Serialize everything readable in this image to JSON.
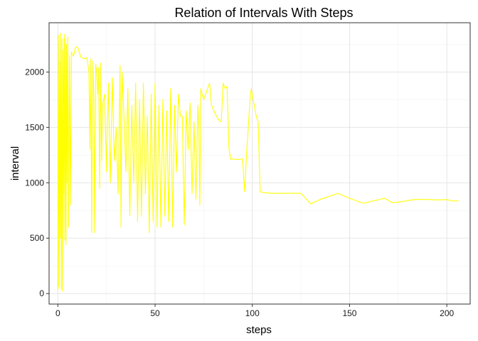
{
  "chart_data": {
    "type": "line",
    "title": "Relation of Intervals With Steps",
    "xlabel": "steps",
    "ylabel": "interval",
    "xlim": [
      -4.5,
      212
    ],
    "ylim": [
      -95,
      2445
    ],
    "xticks": [
      0,
      50,
      100,
      150,
      200
    ],
    "yticks": [
      0,
      500,
      1000,
      1500,
      2000
    ],
    "grid": true,
    "series_color": "#FFFF00",
    "series": [
      {
        "values": [
          [
            0,
            30
          ],
          [
            0.3,
            2330
          ],
          [
            0.6,
            60
          ],
          [
            0.9,
            2100
          ],
          [
            1.2,
            500
          ],
          [
            1.5,
            2350
          ],
          [
            1.8,
            40
          ],
          [
            2.1,
            2300
          ],
          [
            2.4,
            20
          ],
          [
            2.7,
            2200
          ],
          [
            3.0,
            900
          ],
          [
            3.3,
            2340
          ],
          [
            3.6,
            480
          ],
          [
            3.9,
            2300
          ],
          [
            4.2,
            440
          ],
          [
            4.5,
            2250
          ],
          [
            4.8,
            1000
          ],
          [
            5.1,
            2320
          ],
          [
            5.5,
            600
          ],
          [
            6.0,
            2150
          ],
          [
            6.5,
            800
          ],
          [
            7,
            2180
          ],
          [
            8,
            2140
          ],
          [
            9,
            2220
          ],
          [
            10,
            2230
          ],
          [
            11,
            2180
          ],
          [
            12,
            2130
          ],
          [
            14,
            2120
          ],
          [
            15,
            2130
          ],
          [
            16,
            2000
          ],
          [
            16.5,
            1300
          ],
          [
            17,
            2120
          ],
          [
            17.4,
            550
          ],
          [
            18,
            2100
          ],
          [
            18.5,
            1800
          ],
          [
            19,
            550
          ],
          [
            19.5,
            2070
          ],
          [
            20,
            2000
          ],
          [
            20.5,
            1800
          ],
          [
            21,
            2040
          ],
          [
            21.5,
            950
          ],
          [
            22,
            2080
          ],
          [
            22.5,
            1200
          ],
          [
            23,
            1700
          ],
          [
            24,
            1800
          ],
          [
            25,
            1100
          ],
          [
            26,
            1900
          ],
          [
            27,
            1000
          ],
          [
            28,
            1950
          ],
          [
            29,
            1200
          ],
          [
            30,
            1500
          ],
          [
            31,
            900
          ],
          [
            32,
            2060
          ],
          [
            32.5,
            600
          ],
          [
            33,
            2000
          ],
          [
            34,
            1600
          ],
          [
            35,
            1100
          ],
          [
            36,
            1850
          ],
          [
            37,
            700
          ],
          [
            38,
            1700
          ],
          [
            39,
            1000
          ],
          [
            40,
            1900
          ],
          [
            41,
            650
          ],
          [
            42,
            1750
          ],
          [
            43,
            700
          ],
          [
            44,
            1900
          ],
          [
            45,
            900
          ],
          [
            46,
            1600
          ],
          [
            47,
            550
          ],
          [
            48,
            1800
          ],
          [
            49,
            650
          ],
          [
            50,
            1900
          ],
          [
            51,
            600
          ],
          [
            52,
            1700
          ],
          [
            53,
            600
          ],
          [
            54,
            1750
          ],
          [
            55,
            700
          ],
          [
            56,
            1650
          ],
          [
            57,
            650
          ],
          [
            58,
            1850
          ],
          [
            59,
            600
          ],
          [
            60,
            1700
          ],
          [
            61,
            1100
          ],
          [
            62,
            1800
          ],
          [
            63,
            1600
          ],
          [
            64,
            1600
          ],
          [
            65,
            620
          ],
          [
            66,
            1650
          ],
          [
            67,
            1300
          ],
          [
            68,
            1720
          ],
          [
            69,
            900
          ],
          [
            70,
            1550
          ],
          [
            71,
            850
          ],
          [
            72,
            1700
          ],
          [
            72.5,
            1500
          ],
          [
            73,
            800
          ],
          [
            73.5,
            1850
          ],
          [
            75,
            1750
          ],
          [
            76,
            1800
          ],
          [
            77,
            1850
          ],
          [
            78,
            1900
          ],
          [
            79,
            1700
          ],
          [
            81,
            1620
          ],
          [
            83,
            1560
          ],
          [
            84,
            1550
          ],
          [
            85,
            1900
          ],
          [
            86,
            1850
          ],
          [
            87,
            1870
          ],
          [
            88,
            1300
          ],
          [
            89,
            1210
          ],
          [
            90,
            1215
          ],
          [
            92,
            1210
          ],
          [
            95,
            1215
          ],
          [
            96,
            920
          ],
          [
            97,
            1250
          ],
          [
            99,
            1800
          ],
          [
            99.5,
            1850
          ],
          [
            100,
            1780
          ],
          [
            101,
            1700
          ],
          [
            102,
            1600
          ],
          [
            103,
            1550
          ],
          [
            104,
            920
          ],
          [
            106,
            910
          ],
          [
            110,
            905
          ],
          [
            115,
            905
          ],
          [
            120,
            905
          ],
          [
            125,
            905
          ],
          [
            130,
            810
          ],
          [
            135,
            850
          ],
          [
            144,
            905
          ],
          [
            150,
            860
          ],
          [
            157,
            815
          ],
          [
            163,
            840
          ],
          [
            168,
            860
          ],
          [
            172,
            820
          ],
          [
            177,
            830
          ],
          [
            180,
            840
          ],
          [
            184,
            850
          ],
          [
            190,
            850
          ],
          [
            195,
            845
          ],
          [
            200,
            848
          ],
          [
            203,
            835
          ],
          [
            206,
            838
          ]
        ]
      }
    ]
  }
}
